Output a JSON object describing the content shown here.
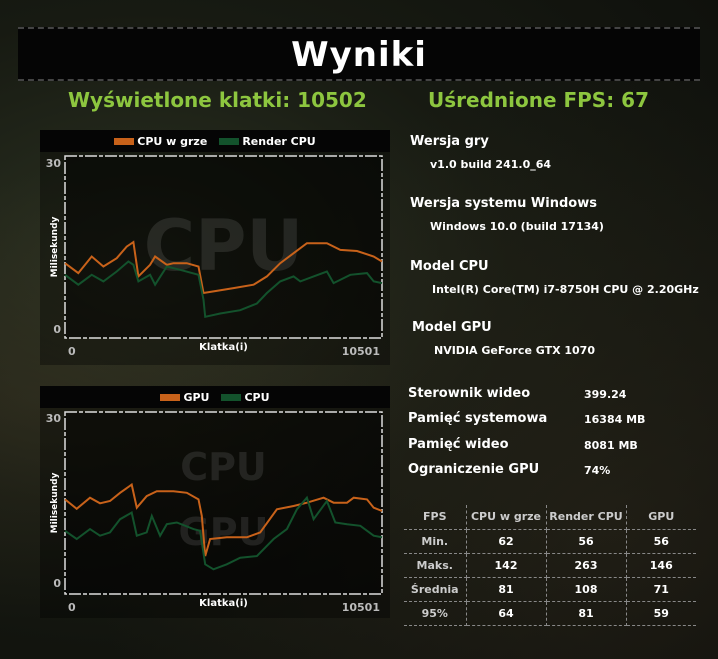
{
  "title": "Wyniki",
  "frames_label": "Wyświetlone klatki: 10502",
  "fps_label": "Uśrednione FPS: 67",
  "colors": {
    "accent": "#8dc63f",
    "orange": "#c8621a",
    "green": "#13522c"
  },
  "chart_data": [
    {
      "type": "line",
      "watermark": "CPU",
      "legend": [
        "CPU w grze",
        "Render CPU"
      ],
      "ylabel": "Milisekundy",
      "xlabel": "Klatka(i)",
      "xlim": [
        0,
        10501
      ],
      "ylim": [
        0,
        30
      ],
      "xticks": [
        "0",
        "10501"
      ],
      "yticks": [
        "30",
        "0"
      ],
      "series": [
        {
          "name": "CPU w grze",
          "x": [
            0,
            442,
            884,
            1271,
            1713,
            2045,
            2266,
            2432,
            2819,
            2985,
            3371,
            3593,
            4035,
            4422,
            4587,
            4919,
            5582,
            6245,
            6688,
            7130,
            7572,
            8014,
            8677,
            9120,
            9672,
            10225,
            10501
          ],
          "y": [
            11.9,
            10.1,
            13.1,
            11.3,
            12.8,
            14.9,
            15.7,
            9.5,
            11.6,
            13.1,
            11.6,
            11.9,
            11.9,
            11.3,
            6.5,
            6.8,
            7.4,
            8.0,
            9.5,
            11.9,
            13.7,
            15.5,
            15.5,
            14.3,
            14.1,
            13.1,
            12.2
          ]
        },
        {
          "name": "Render CPU",
          "x": [
            0,
            442,
            884,
            1271,
            1713,
            2100,
            2266,
            2432,
            2819,
            2985,
            3371,
            3814,
            4422,
            4587,
            4643,
            5140,
            5803,
            6356,
            6688,
            7130,
            7572,
            7793,
            8235,
            8677,
            8898,
            9451,
            10004,
            10225,
            10501
          ],
          "y": [
            9.8,
            8.0,
            9.8,
            8.6,
            10.4,
            12.2,
            11.6,
            8.6,
            9.8,
            8.0,
            11.3,
            10.7,
            9.8,
            5.3,
            2.2,
            2.8,
            3.4,
            4.6,
            6.5,
            8.6,
            9.5,
            8.6,
            9.5,
            10.4,
            8.3,
            9.8,
            10.1,
            8.6,
            8.3
          ]
        }
      ]
    },
    {
      "type": "line",
      "watermark": [
        "CPU",
        "GPU"
      ],
      "legend": [
        "GPU",
        "CPU"
      ],
      "ylabel": "Milisekundy",
      "xlabel": "Klatka(i)",
      "xlim": [
        0,
        10501
      ],
      "ylim": [
        0,
        30
      ],
      "xticks": [
        "0",
        "10501"
      ],
      "yticks": [
        "30",
        "0"
      ],
      "series": [
        {
          "name": "GPU",
          "x": [
            0,
            387,
            829,
            1161,
            1492,
            1824,
            2211,
            2377,
            2708,
            3040,
            3593,
            4035,
            4422,
            4532,
            4643,
            4808,
            5361,
            6024,
            6467,
            7019,
            7572,
            8014,
            8567,
            8898,
            9341,
            9562,
            10004,
            10225,
            10501
          ],
          "y": [
            15.2,
            13.5,
            15.5,
            14.5,
            14.9,
            16.4,
            17.9,
            13.7,
            15.8,
            16.7,
            16.7,
            16.4,
            15.2,
            12.2,
            4.9,
            8.0,
            8.3,
            8.3,
            9.2,
            13.4,
            14.0,
            14.6,
            15.5,
            14.6,
            14.6,
            15.5,
            15.2,
            13.7,
            13.1
          ]
        },
        {
          "name": "CPU",
          "x": [
            0,
            387,
            829,
            1161,
            1492,
            1824,
            2211,
            2377,
            2708,
            2874,
            3150,
            3371,
            3703,
            4256,
            4477,
            4643,
            4919,
            5361,
            5803,
            6356,
            6909,
            7351,
            7683,
            8014,
            8235,
            8677,
            8954,
            9341,
            9783,
            10225,
            10501
          ],
          "y": [
            9.5,
            8.0,
            9.8,
            8.6,
            9.2,
            11.6,
            12.8,
            8.6,
            9.2,
            12.2,
            8.6,
            10.7,
            11.0,
            9.8,
            9.5,
            3.4,
            2.5,
            3.4,
            4.6,
            4.9,
            8.0,
            9.8,
            13.4,
            15.5,
            11.6,
            14.9,
            11.0,
            10.7,
            10.4,
            8.6,
            8.3
          ]
        }
      ]
    }
  ],
  "info": {
    "game_version_label": "Wersja gry",
    "game_version": "v1.0 build 241.0_64",
    "windows_label": "Wersja systemu Windows",
    "windows": "Windows 10.0 (build 17134)",
    "cpu_label": "Model CPU",
    "cpu": "Intel(R) Core(TM) i7-8750H CPU @ 2.20GHz",
    "gpu_label": "Model GPU",
    "gpu": "NVIDIA GeForce GTX 1070",
    "stats": [
      {
        "label": "Sterownik wideo",
        "value": "399.24"
      },
      {
        "label": "Pamięć systemowa",
        "value": "16384 MB"
      },
      {
        "label": "Pamięć wideo",
        "value": "8081 MB"
      },
      {
        "label": "Ograniczenie GPU",
        "value": "74%"
      }
    ]
  },
  "fps_table": {
    "headers": [
      "FPS",
      "CPU w grze",
      "Render CPU",
      "GPU"
    ],
    "rows": [
      [
        "Min.",
        "62",
        "56",
        "56"
      ],
      [
        "Maks.",
        "142",
        "263",
        "146"
      ],
      [
        "Średnia",
        "81",
        "108",
        "71"
      ],
      [
        "95%",
        "64",
        "81",
        "59"
      ]
    ]
  }
}
